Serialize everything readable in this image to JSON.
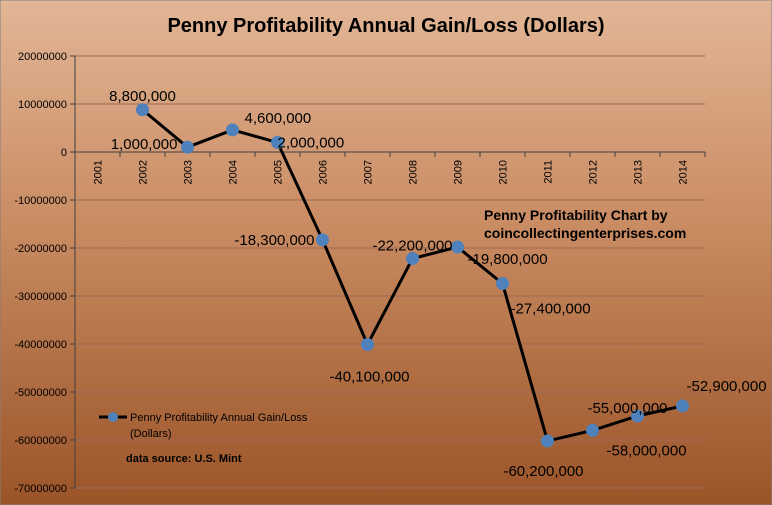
{
  "chart_data": {
    "type": "line",
    "title": "Penny Profitability Annual Gain/Loss (Dollars)",
    "categories": [
      "2001",
      "2002",
      "2003",
      "2004",
      "2005",
      "2006",
      "2007",
      "2008",
      "2009",
      "2010",
      "2011",
      "2012",
      "2013",
      "2014"
    ],
    "series": [
      {
        "name": "Penny Profitability Annual Gain/Loss (Dollars)",
        "values": [
          null,
          8800000,
          1000000,
          4600000,
          2000000,
          -18300000,
          -40100000,
          -22200000,
          -19800000,
          -27400000,
          -60200000,
          -58000000,
          -55000000,
          -52900000
        ],
        "data_labels": [
          "",
          "8,800,000",
          "1,000,000",
          "4,600,000",
          "2,000,000",
          "-18,300,000",
          "-40,100,000",
          "-22,200,000",
          "-19,800,000",
          "-27,400,000",
          "-60,200,000",
          "-58,000,000",
          "-55,000,000",
          "-52,900,000"
        ]
      }
    ],
    "yticks": [
      20000000,
      10000000,
      0,
      -10000000,
      -20000000,
      -30000000,
      -40000000,
      -50000000,
      -60000000,
      -70000000
    ],
    "ytick_labels": [
      "20000000",
      "10000000",
      "0",
      "-10000000",
      "-20000000",
      "-30000000",
      "-40000000",
      "-50000000",
      "-60000000",
      "-70000000"
    ],
    "ylim": [
      -70000000,
      20000000
    ],
    "legend": {
      "label_line1": "Penny Profitability Annual Gain/Loss",
      "label_line2": "(Dollars)"
    },
    "annotation": {
      "line1": "Penny Profitability Chart by",
      "line2": "coincollectingenterprises.com"
    },
    "source": "data source: U.S. Mint",
    "colors": {
      "line": "#000000",
      "marker": "#4f81bd",
      "grid": "#9a6a55"
    }
  }
}
